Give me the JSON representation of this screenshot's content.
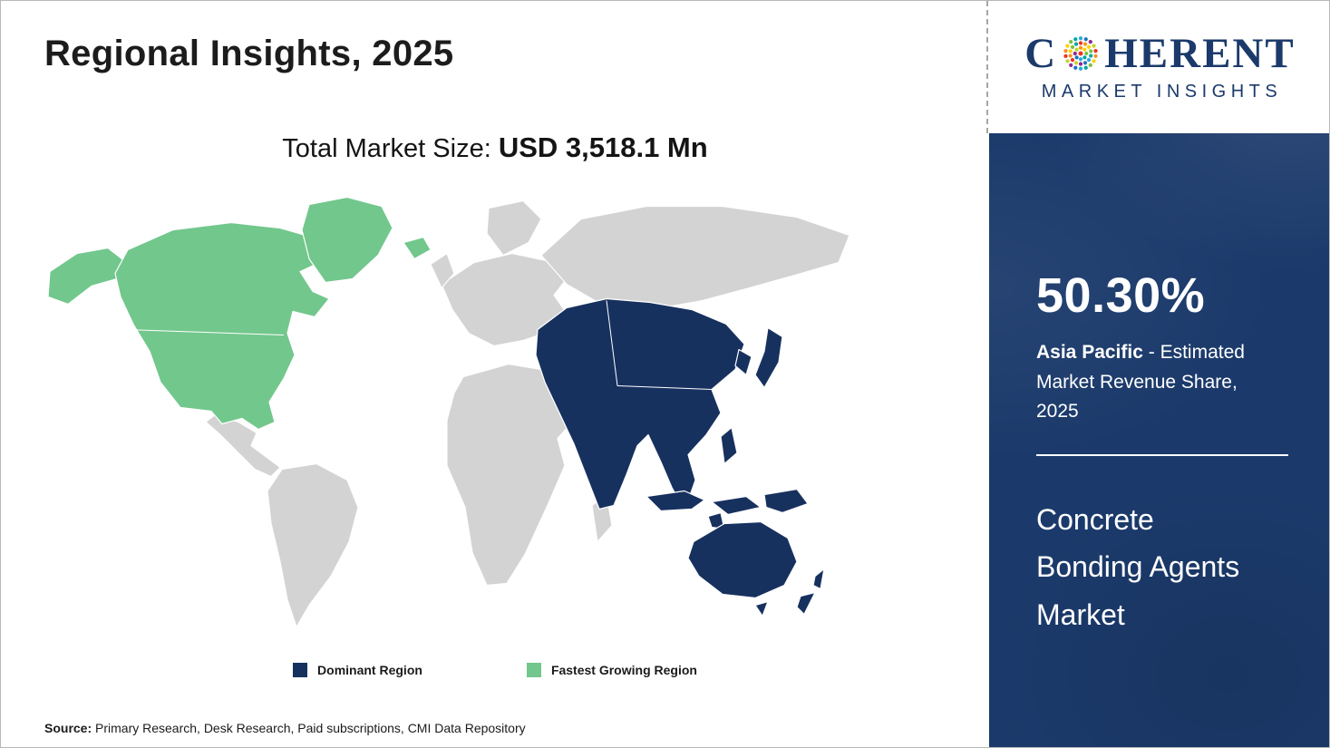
{
  "page": {
    "title": "Regional Insights, 2025",
    "market_size_label": "Total Market Size: ",
    "market_size_value": "USD 3,518.1 Mn",
    "source_label": "Source:",
    "source_text": " Primary Research, Desk Research, Paid subscriptions, CMI Data Repository"
  },
  "map": {
    "other_color": "#d3d3d3",
    "ocean_color": "#ffffff",
    "border_color": "#ffffff"
  },
  "legend": {
    "dominant": {
      "label": "Dominant Region",
      "color": "#17315f"
    },
    "fastest_growing": {
      "label": "Fastest Growing Region",
      "color": "#72c78c"
    }
  },
  "sidebar": {
    "background_color": "#1b3a6b",
    "logo": {
      "brand_prefix": "C",
      "brand_suffix": "HERENT",
      "brand_subtitle": "MARKET INSIGHTS"
    },
    "share_value": "50.30%",
    "share_region": "Asia Pacific",
    "share_description": " - Estimated Market Revenue Share, 2025",
    "market_name": "Concrete Bonding Agents Market"
  },
  "chart_data": {
    "type": "heatmap",
    "subtype": "world-choropleth",
    "title": "Regional Insights, 2025",
    "total_market_size": "USD 3,518.1 Mn",
    "regions": [
      {
        "name": "Asia Pacific",
        "classification": "Dominant Region",
        "color": "#17315f",
        "estimated_market_revenue_share_2025_pct": 50.3
      },
      {
        "name": "North America",
        "classification": "Fastest Growing Region",
        "color": "#72c78c"
      },
      {
        "name": "Rest of World",
        "classification": "Other",
        "color": "#d3d3d3"
      }
    ],
    "legend_entries": [
      "Dominant Region",
      "Fastest Growing Region"
    ],
    "source": "Primary Research, Desk Research, Paid subscriptions, CMI Data Repository"
  }
}
